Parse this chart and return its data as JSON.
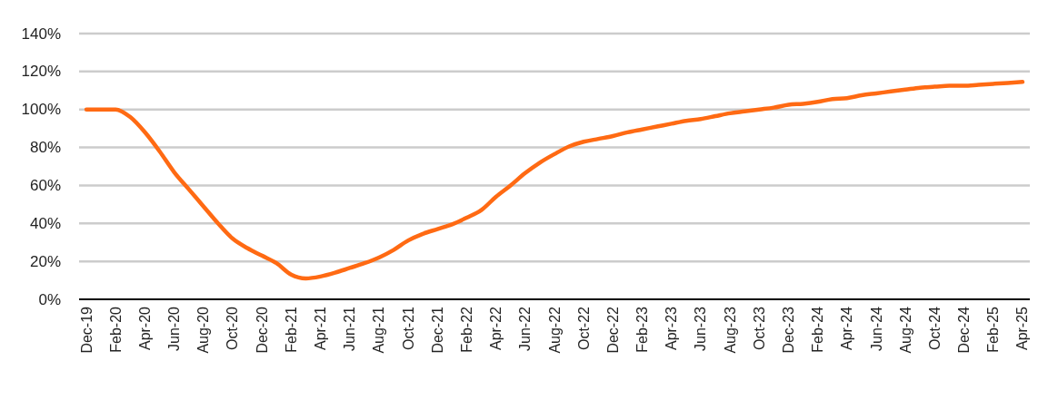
{
  "chart_data": {
    "type": "line",
    "categories": [
      "Dec-19",
      null,
      "Feb-20",
      null,
      "Apr-20",
      null,
      "Jun-20",
      null,
      "Aug-20",
      null,
      "Oct-20",
      null,
      "Dec-20",
      null,
      "Feb-21",
      null,
      "Apr-21",
      null,
      "Jun-21",
      null,
      "Aug-21",
      null,
      "Oct-21",
      null,
      "Dec-21",
      null,
      "Feb-22",
      null,
      "Apr-22",
      null,
      "Jun-22",
      null,
      "Aug-22",
      null,
      "Oct-22",
      null,
      "Dec-22",
      null,
      "Feb-23",
      null,
      "Apr-23",
      null,
      "Jun-23",
      null,
      "Aug-23",
      null,
      "Oct-23",
      null,
      "Dec-23",
      null,
      "Feb-24",
      null,
      "Apr-24",
      null,
      "Jun-24",
      null,
      "Aug-24",
      null,
      "Oct-24",
      null,
      "Dec-24",
      null,
      "Feb-25",
      null,
      "Apr-25"
    ],
    "series": [
      {
        "color": "#ff6a13",
        "values": [
          100,
          100,
          100,
          96,
          88,
          78,
          67,
          58,
          49,
          40,
          32,
          27,
          23,
          19,
          13,
          11,
          12,
          14,
          16.5,
          19,
          22,
          26,
          31,
          34.5,
          37,
          39.5,
          43,
          47,
          54,
          60,
          66.5,
          72,
          76.5,
          80.5,
          83,
          84.5,
          86,
          88,
          89.5,
          91,
          92.5,
          94,
          95,
          96.5,
          98,
          99,
          100,
          101,
          102.5,
          103,
          104,
          105.5,
          106,
          107.5,
          108.5,
          109.5,
          110.5,
          111.5,
          112,
          112.5,
          112.5,
          113,
          113.5,
          114,
          114.5
        ]
      }
    ],
    "ylim": [
      0,
      140
    ],
    "yticks": [
      {
        "value": 0,
        "label": "0%"
      },
      {
        "value": 20,
        "label": "20%"
      },
      {
        "value": 40,
        "label": "40%"
      },
      {
        "value": 60,
        "label": "60%"
      },
      {
        "value": 80,
        "label": "80%"
      },
      {
        "value": 100,
        "label": "100%"
      },
      {
        "value": 120,
        "label": "120%"
      },
      {
        "value": 140,
        "label": "140%"
      }
    ],
    "grid": "y",
    "line_style": "solid"
  }
}
